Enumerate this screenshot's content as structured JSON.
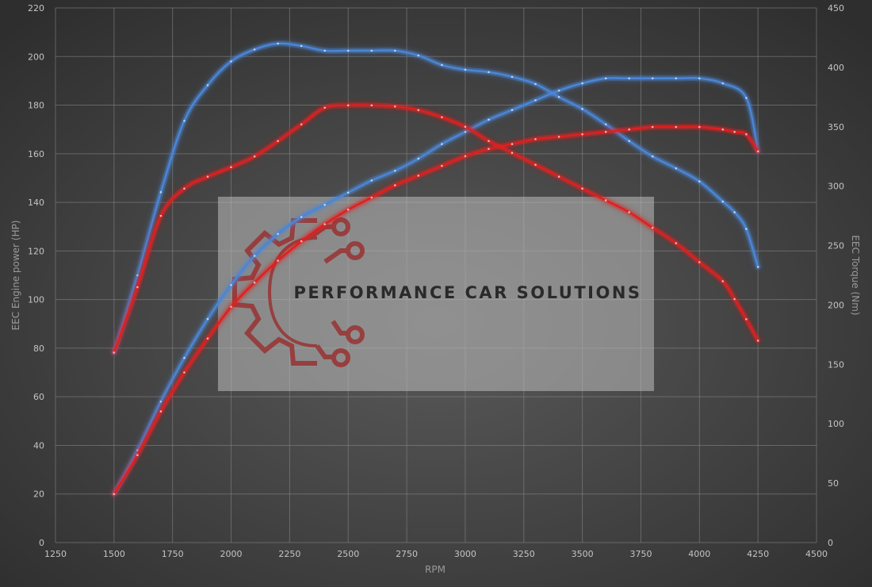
{
  "chart_data": {
    "type": "line",
    "xlabel": "RPM",
    "ylabel": "EEC Engine power (HP)",
    "y2label": "EEC Torque (Nm)",
    "xlim": [
      1250,
      4500
    ],
    "ylim": [
      0,
      220
    ],
    "y2lim": [
      0,
      450
    ],
    "x_ticks": [
      1250,
      1500,
      1750,
      2000,
      2250,
      2500,
      2750,
      3000,
      3250,
      3500,
      3750,
      4000,
      4250,
      4500
    ],
    "y_ticks": [
      0,
      20,
      40,
      60,
      80,
      100,
      120,
      140,
      160,
      180,
      200,
      220
    ],
    "y2_ticks": [
      0,
      50,
      100,
      150,
      200,
      250,
      300,
      350,
      400,
      450
    ],
    "grid": true,
    "colors": {
      "tuned": "#4a86d6",
      "stock": "#e01f1f"
    },
    "series": [
      {
        "key": "tuned",
        "axis": "left",
        "x": [
          1500,
          1600,
          1700,
          1800,
          1900,
          2000,
          2100,
          2200,
          2300,
          2400,
          2500,
          2600,
          2700,
          2800,
          2900,
          3000,
          3100,
          3200,
          3300,
          3400,
          3500,
          3600,
          3700,
          3800,
          3900,
          4000,
          4100,
          4200,
          4250
        ],
        "values": [
          20,
          38,
          58,
          76,
          92,
          106,
          118,
          127,
          134,
          139,
          144,
          149,
          153,
          158,
          164,
          169,
          174,
          178,
          182,
          186,
          189,
          191,
          191,
          191,
          191,
          191,
          189,
          183,
          161
        ]
      },
      {
        "key": "tuned",
        "axis": "right",
        "x": [
          1500,
          1600,
          1700,
          1800,
          1900,
          2000,
          2100,
          2200,
          2300,
          2400,
          2500,
          2600,
          2700,
          2800,
          2900,
          3000,
          3100,
          3200,
          3300,
          3400,
          3500,
          3600,
          3700,
          3800,
          3900,
          4000,
          4100,
          4150,
          4200,
          4250
        ],
        "values": [
          160,
          225,
          295,
          355,
          385,
          405,
          415,
          420,
          418,
          414,
          414,
          414,
          414,
          410,
          402,
          398,
          396,
          392,
          386,
          375,
          365,
          352,
          338,
          325,
          315,
          304,
          287,
          278,
          264,
          232
        ]
      },
      {
        "key": "stock",
        "axis": "left",
        "x": [
          1500,
          1600,
          1700,
          1800,
          1900,
          2000,
          2100,
          2200,
          2300,
          2400,
          2500,
          2600,
          2700,
          2800,
          2900,
          3000,
          3100,
          3200,
          3300,
          3400,
          3500,
          3600,
          3700,
          3800,
          3900,
          4000,
          4100,
          4150,
          4200,
          4250
        ],
        "values": [
          20,
          36,
          54,
          70,
          84,
          97,
          107,
          116,
          124,
          131,
          137,
          142,
          147,
          151,
          155,
          159,
          162,
          164,
          166,
          167,
          168,
          169,
          170,
          171,
          171,
          171,
          170,
          169,
          168,
          161
        ]
      },
      {
        "key": "stock",
        "axis": "right",
        "x": [
          1500,
          1600,
          1700,
          1800,
          1900,
          2000,
          2100,
          2200,
          2300,
          2400,
          2500,
          2600,
          2700,
          2800,
          2900,
          3000,
          3100,
          3200,
          3300,
          3400,
          3500,
          3600,
          3700,
          3800,
          3900,
          4000,
          4100,
          4150,
          4200,
          4250
        ],
        "values": [
          160,
          215,
          275,
          298,
          308,
          316,
          325,
          338,
          352,
          366,
          368,
          368,
          367,
          364,
          358,
          350,
          338,
          328,
          318,
          308,
          298,
          288,
          278,
          265,
          252,
          236,
          220,
          205,
          188,
          170
        ]
      }
    ]
  },
  "watermark": {
    "text": "PERFORMANCE CAR SOLUTIONS",
    "logo": "gear-circuit-logo"
  }
}
